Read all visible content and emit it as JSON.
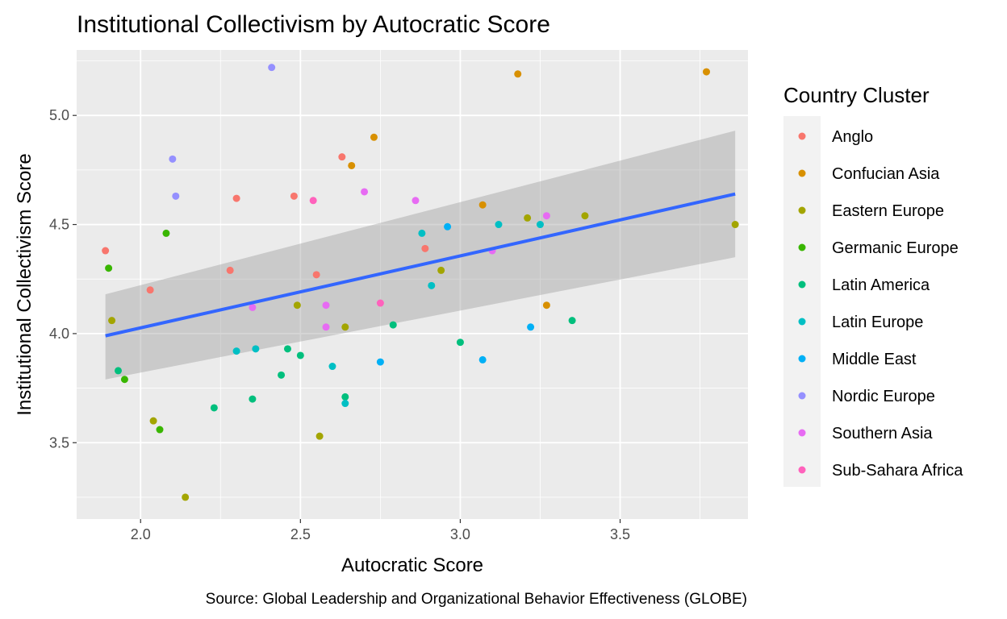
{
  "chart_data": {
    "type": "scatter",
    "title": "Institutional Collectivism by Autocratic Score",
    "xlabel": "Autocratic Score",
    "ylabel": "Institutional Collectivism Score",
    "caption": "Source: Global Leadership and Organizational Behavior Effectiveness (GLOBE)",
    "xlim": [
      1.8,
      3.9
    ],
    "ylim": [
      3.15,
      5.3
    ],
    "x_ticks": [
      2.0,
      2.5,
      3.0,
      3.5
    ],
    "x_tick_labels": [
      "2.0",
      "2.5",
      "3.0",
      "3.5"
    ],
    "y_ticks": [
      3.5,
      4.0,
      4.5,
      5.0
    ],
    "y_tick_labels": [
      "3.5",
      "4.0",
      "4.5",
      "5.0"
    ],
    "grid": true,
    "legend": {
      "title": "Country Cluster",
      "position": "right"
    },
    "series": [
      {
        "name": "Anglo",
        "color": "#F8766D",
        "points": [
          [
            1.89,
            4.38
          ],
          [
            2.03,
            4.2
          ],
          [
            2.28,
            4.29
          ],
          [
            2.3,
            4.62
          ],
          [
            2.48,
            4.63
          ],
          [
            2.55,
            4.27
          ],
          [
            2.63,
            4.81
          ],
          [
            2.89,
            4.39
          ]
        ]
      },
      {
        "name": "Confucian Asia",
        "color": "#D89000",
        "points": [
          [
            2.66,
            4.77
          ],
          [
            2.73,
            4.9
          ],
          [
            3.07,
            4.59
          ],
          [
            3.18,
            5.19
          ],
          [
            3.27,
            4.13
          ],
          [
            3.77,
            5.2
          ]
        ]
      },
      {
        "name": "Eastern Europe",
        "color": "#A3A500",
        "points": [
          [
            1.91,
            4.06
          ],
          [
            2.04,
            3.6
          ],
          [
            2.14,
            3.25
          ],
          [
            2.49,
            4.13
          ],
          [
            2.56,
            3.53
          ],
          [
            2.64,
            4.03
          ],
          [
            2.94,
            4.29
          ],
          [
            3.21,
            4.53
          ],
          [
            3.39,
            4.54
          ],
          [
            3.86,
            4.5
          ]
        ]
      },
      {
        "name": "Germanic Europe",
        "color": "#39B600",
        "points": [
          [
            1.9,
            4.3
          ],
          [
            1.95,
            3.79
          ],
          [
            2.06,
            3.56
          ],
          [
            2.08,
            4.46
          ]
        ]
      },
      {
        "name": "Latin America",
        "color": "#00BF7D",
        "points": [
          [
            1.93,
            3.83
          ],
          [
            2.23,
            3.66
          ],
          [
            2.35,
            3.7
          ],
          [
            2.44,
            3.81
          ],
          [
            2.46,
            3.93
          ],
          [
            2.5,
            3.9
          ],
          [
            2.64,
            3.71
          ],
          [
            2.79,
            4.04
          ],
          [
            3.0,
            3.96
          ],
          [
            3.35,
            4.06
          ]
        ]
      },
      {
        "name": "Latin Europe",
        "color": "#00BFC4",
        "points": [
          [
            2.3,
            3.92
          ],
          [
            2.36,
            3.93
          ],
          [
            2.6,
            3.85
          ],
          [
            2.64,
            3.68
          ],
          [
            2.88,
            4.46
          ],
          [
            2.91,
            4.22
          ],
          [
            3.12,
            4.5
          ],
          [
            3.25,
            4.5
          ]
        ]
      },
      {
        "name": "Middle East",
        "color": "#00B0F6",
        "points": [
          [
            2.75,
            3.87
          ],
          [
            2.96,
            4.49
          ],
          [
            3.07,
            3.88
          ],
          [
            3.22,
            4.03
          ]
        ]
      },
      {
        "name": "Nordic Europe",
        "color": "#9590FF",
        "points": [
          [
            2.1,
            4.8
          ],
          [
            2.11,
            4.63
          ],
          [
            2.41,
            5.22
          ]
        ]
      },
      {
        "name": "Southern Asia",
        "color": "#E76BF3",
        "points": [
          [
            2.35,
            4.12
          ],
          [
            2.58,
            4.13
          ],
          [
            2.58,
            4.03
          ],
          [
            2.7,
            4.65
          ],
          [
            2.86,
            4.61
          ],
          [
            3.1,
            4.38
          ],
          [
            3.27,
            4.54
          ]
        ]
      },
      {
        "name": "Sub-Sahara Africa",
        "color": "#FF62BC",
        "points": [
          [
            2.54,
            4.61
          ],
          [
            2.75,
            4.14
          ]
        ]
      }
    ],
    "trend": {
      "method": "lm",
      "color": "#3366FF",
      "x": [
        1.89,
        3.86
      ],
      "y": [
        3.99,
        4.64
      ],
      "ci_lower": [
        3.79,
        4.35
      ],
      "ci_upper": [
        4.18,
        4.93
      ],
      "ci_color": "#999999"
    }
  }
}
